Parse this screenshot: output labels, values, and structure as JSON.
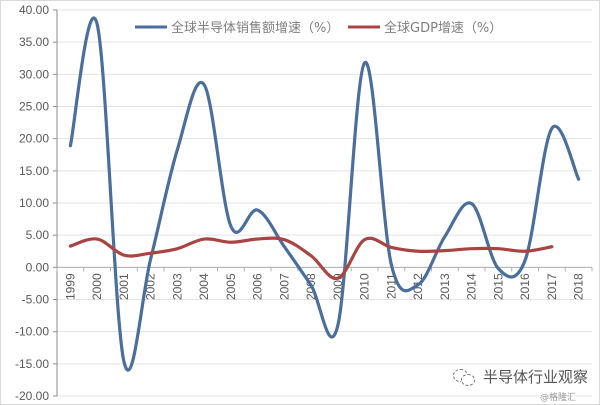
{
  "chart_data": {
    "type": "line",
    "title": "",
    "xlabel": "",
    "ylabel": "",
    "ylim": [
      -20,
      40
    ],
    "y_ticks": [
      "40.00",
      "35.00",
      "30.00",
      "25.00",
      "20.00",
      "15.00",
      "10.00",
      "5.00",
      "0.00",
      "-5.00",
      "-10.00",
      "-15.00",
      "-20.00"
    ],
    "grid": true,
    "legend_position": "top",
    "categories": [
      "1999",
      "2000",
      "2001",
      "2002",
      "2003",
      "2004",
      "2005",
      "2006",
      "2007",
      "2008",
      "2009",
      "2010",
      "2011",
      "2012",
      "2013",
      "2014",
      "2015",
      "2016",
      "2017",
      "2018"
    ],
    "series": [
      {
        "name": "全球半导体销售额增速（%）",
        "color": "#4a6f9c",
        "values": [
          18.9,
          37.8,
          -14.6,
          1.3,
          18.3,
          28.4,
          6.4,
          8.9,
          3.2,
          -2.8,
          -9.0,
          31.8,
          0.4,
          -2.7,
          4.8,
          9.9,
          -0.2,
          1.1,
          21.6,
          13.7
        ]
      },
      {
        "name": "全球GDP增速（%）",
        "color": "#a94442",
        "values": [
          3.3,
          4.4,
          1.9,
          2.2,
          2.9,
          4.4,
          3.9,
          4.4,
          4.3,
          1.8,
          -1.7,
          4.3,
          3.1,
          2.5,
          2.6,
          2.9,
          2.9,
          2.5,
          3.2,
          null
        ]
      }
    ]
  },
  "watermark": {
    "brand": "半导体行业观察",
    "credit": "@格隆汇"
  }
}
